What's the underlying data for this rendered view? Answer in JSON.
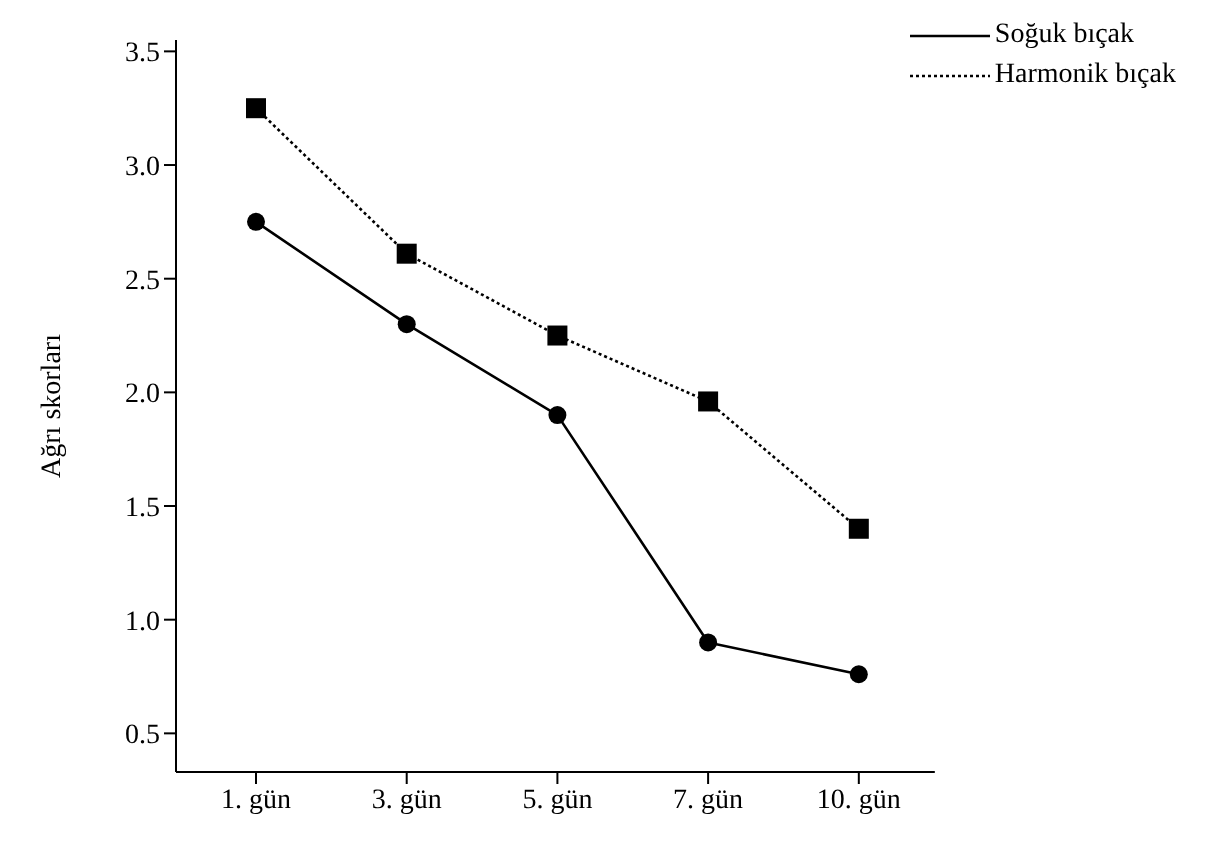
{
  "chart_data": {
    "type": "line",
    "ylabel": "Ağrı skorları",
    "categories": [
      "1. gün",
      "3. gün",
      "5. gün",
      "7. gün",
      "10. gün"
    ],
    "series": [
      {
        "name": "Soğuk bıçak",
        "color": "#000000",
        "values": [
          2.75,
          2.3,
          1.9,
          0.9,
          0.76
        ],
        "marker": "circle",
        "line_style": "solid"
      },
      {
        "name": "Harmonik bıçak",
        "color": "#000000",
        "values": [
          3.25,
          2.61,
          2.25,
          1.96,
          1.4
        ],
        "marker": "square",
        "line_style": "dotted"
      }
    ],
    "ylim": [
      0.33,
      3.55
    ],
    "yticks": [
      {
        "value": 0.5,
        "label": "0.5"
      },
      {
        "value": 1,
        "label": "1.0"
      },
      {
        "value": 1.5,
        "label": "1.5"
      },
      {
        "value": 2,
        "label": "2.0"
      },
      {
        "value": 2.5,
        "label": "2.5"
      },
      {
        "value": 3,
        "label": "3.0"
      },
      {
        "value": 3.5,
        "label": "3.5"
      }
    ],
    "grid": false,
    "legend": "top right"
  }
}
